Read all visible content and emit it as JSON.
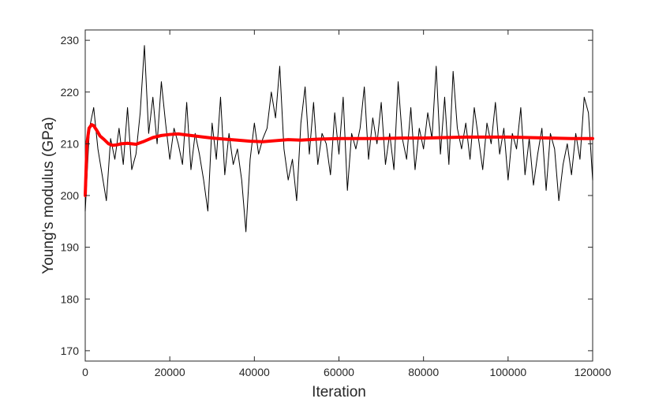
{
  "chart_data": {
    "type": "line",
    "xlabel": "Iteration",
    "ylabel": "Young's modulus (GPa)",
    "xlim": [
      0,
      120000
    ],
    "ylim": [
      168,
      232
    ],
    "xticks": [
      0,
      20000,
      40000,
      60000,
      80000,
      100000,
      120000
    ],
    "yticks": [
      170,
      180,
      190,
      200,
      210,
      220,
      230
    ],
    "grid": false,
    "legend": "none",
    "series": [
      {
        "style": "trace",
        "color": "#000000",
        "x": [
          0,
          1000,
          2000,
          3000,
          4000,
          5000,
          6000,
          7000,
          8000,
          9000,
          10000,
          11000,
          12000,
          13000,
          14000,
          15000,
          16000,
          17000,
          18000,
          19000,
          20000,
          21000,
          22000,
          23000,
          24000,
          25000,
          26000,
          27000,
          28000,
          29000,
          30000,
          31000,
          32000,
          33000,
          34000,
          35000,
          36000,
          37000,
          38000,
          39000,
          40000,
          41000,
          42000,
          43000,
          44000,
          45000,
          46000,
          47000,
          48000,
          49000,
          50000,
          51000,
          52000,
          53000,
          54000,
          55000,
          56000,
          57000,
          58000,
          59000,
          60000,
          61000,
          62000,
          63000,
          64000,
          65000,
          66000,
          67000,
          68000,
          69000,
          70000,
          71000,
          72000,
          73000,
          74000,
          75000,
          76000,
          77000,
          78000,
          79000,
          80000,
          81000,
          82000,
          83000,
          84000,
          85000,
          86000,
          87000,
          88000,
          89000,
          90000,
          91000,
          92000,
          93000,
          94000,
          95000,
          96000,
          97000,
          98000,
          99000,
          100000,
          101000,
          102000,
          103000,
          104000,
          105000,
          106000,
          107000,
          108000,
          109000,
          110000,
          111000,
          112000,
          113000,
          114000,
          115000,
          116000,
          117000,
          118000,
          119000,
          120000
        ],
        "values": [
          197,
          213,
          217,
          209,
          204,
          199,
          211,
          207,
          213,
          206,
          217,
          205,
          208,
          216,
          229,
          212,
          219,
          210,
          222,
          214,
          207,
          213,
          210,
          206,
          218,
          205,
          212,
          208,
          203,
          197,
          214,
          207,
          219,
          204,
          212,
          206,
          209,
          203,
          193,
          207,
          214,
          208,
          211,
          213,
          220,
          215,
          225,
          209,
          203,
          207,
          199,
          214,
          221,
          208,
          218,
          206,
          212,
          210,
          204,
          216,
          208,
          219,
          201,
          212,
          209,
          213,
          221,
          207,
          215,
          210,
          218,
          206,
          212,
          205,
          222,
          211,
          207,
          217,
          205,
          213,
          209,
          216,
          211,
          225,
          208,
          219,
          206,
          224,
          213,
          209,
          214,
          207,
          217,
          211,
          205,
          214,
          210,
          218,
          208,
          213,
          203,
          212,
          209,
          217,
          204,
          211,
          202,
          208,
          213,
          201,
          212,
          209,
          199,
          206,
          210,
          204,
          212,
          207,
          219,
          216,
          203
        ]
      },
      {
        "style": "running-mean",
        "color": "#ff0000",
        "x": [
          0,
          400,
          900,
          1500,
          2000,
          2800,
          3500,
          4500,
          5500,
          6500,
          7500,
          8500,
          10000,
          12000,
          14000,
          16000,
          18000,
          20000,
          22000,
          24000,
          26000,
          28000,
          30000,
          33000,
          36000,
          39000,
          42000,
          45000,
          48000,
          51000,
          55000,
          60000,
          65000,
          70000,
          75000,
          80000,
          85000,
          90000,
          95000,
          100000,
          105000,
          110000,
          115000,
          120000
        ],
        "values": [
          200,
          210,
          213,
          213.7,
          213.5,
          212.5,
          211.5,
          210.8,
          210,
          209.7,
          209.8,
          210,
          210.1,
          209.9,
          210.5,
          211.2,
          211.6,
          211.8,
          211.9,
          211.7,
          211.5,
          211.3,
          211.1,
          210.9,
          210.7,
          210.5,
          210.4,
          210.6,
          210.8,
          210.7,
          210.9,
          211,
          211,
          211,
          211.1,
          211.1,
          211.2,
          211.3,
          211.3,
          211.3,
          211.2,
          211.1,
          211,
          211
        ]
      }
    ]
  }
}
